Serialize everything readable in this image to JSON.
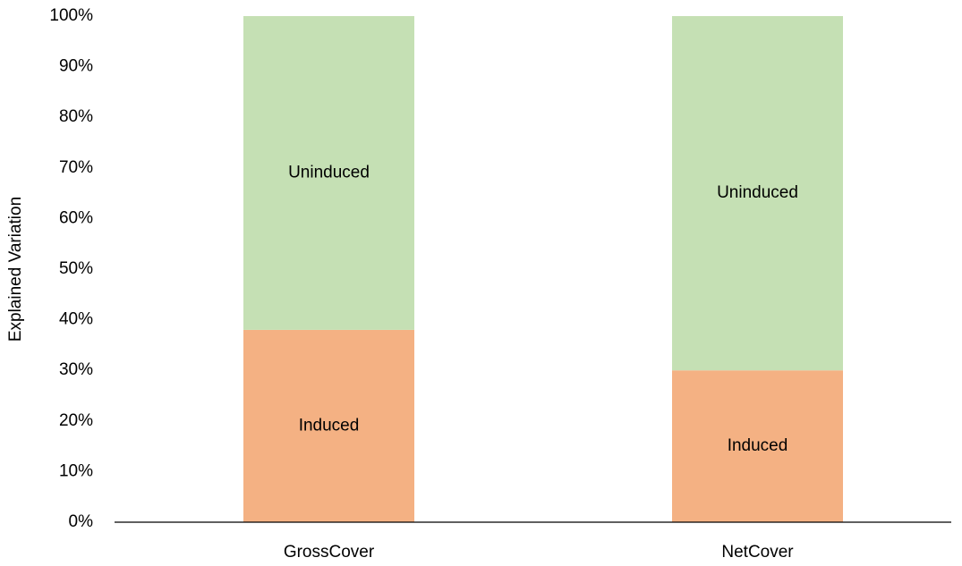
{
  "chart_data": {
    "type": "stacked_bar",
    "y_label": "Explained Variation",
    "categories": [
      "GrossCover",
      "NetCover"
    ],
    "series": [
      {
        "name": "Induced",
        "color": "#f4b183",
        "values": [
          38,
          30
        ]
      },
      {
        "name": "Uninduced",
        "color": "#c5e0b4",
        "values": [
          62,
          70
        ]
      }
    ],
    "ylim": [
      0,
      100
    ],
    "yticks": [
      {
        "value": 0,
        "label": "0%"
      },
      {
        "value": 10,
        "label": "10%"
      },
      {
        "value": 20,
        "label": "20%"
      },
      {
        "value": 30,
        "label": "30%"
      },
      {
        "value": 40,
        "label": "40%"
      },
      {
        "value": 50,
        "label": "50%"
      },
      {
        "value": 60,
        "label": "60%"
      },
      {
        "value": 70,
        "label": "70%"
      },
      {
        "value": 80,
        "label": "80%"
      },
      {
        "value": 90,
        "label": "90%"
      },
      {
        "value": 100,
        "label": "100%"
      }
    ],
    "grid": false
  }
}
